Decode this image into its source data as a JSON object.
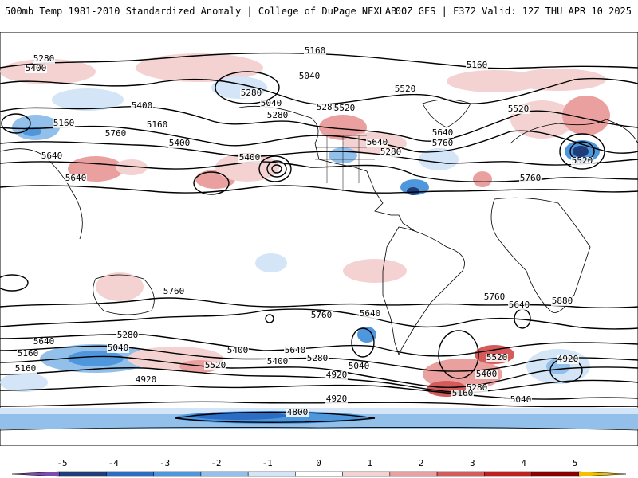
{
  "header": {
    "left_title": "500mb Temp 1981-2010 Standardized Anomaly | College of DuPage NEXLAB",
    "right_title": "00Z GFS | F372 Valid: 12Z THU APR 10 2025"
  },
  "colorbar": {
    "ticks": [
      "-5",
      "-4",
      "-3",
      "-2",
      "-1",
      "0",
      "1",
      "2",
      "3",
      "4",
      "5"
    ],
    "colors": [
      "#7b4bb0",
      "#1f3d7a",
      "#2b6cc4",
      "#4f97dd",
      "#93c0ea",
      "#d3e5f6",
      "#ffffff",
      "#f5d2d2",
      "#eba0a0",
      "#d55a5a",
      "#c21f1f",
      "#8a0000",
      "#f2c200"
    ]
  },
  "contour_labels": [
    "5280",
    "5400",
    "5160",
    "5160",
    "5040",
    "5280",
    "5520",
    "5400",
    "5040",
    "5160",
    "5160",
    "5280",
    "5280",
    "5520",
    "5400",
    "5640",
    "5760",
    "5640",
    "5760",
    "5400",
    "5640",
    "5280",
    "5520",
    "5640",
    "5520",
    "5760",
    "5760",
    "5880",
    "5760",
    "5640",
    "5760",
    "5640",
    "5640",
    "5400",
    "5280",
    "5040",
    "5160",
    "5640",
    "5520",
    "5400",
    "5160",
    "5280",
    "5040",
    "4920",
    "5520",
    "5400",
    "5280",
    "5160",
    "5040",
    "4920",
    "4920",
    "4920",
    "4800"
  ],
  "palette": {
    "ocean": "#ffffff",
    "land_line": "#000000",
    "contour": "#000000"
  }
}
